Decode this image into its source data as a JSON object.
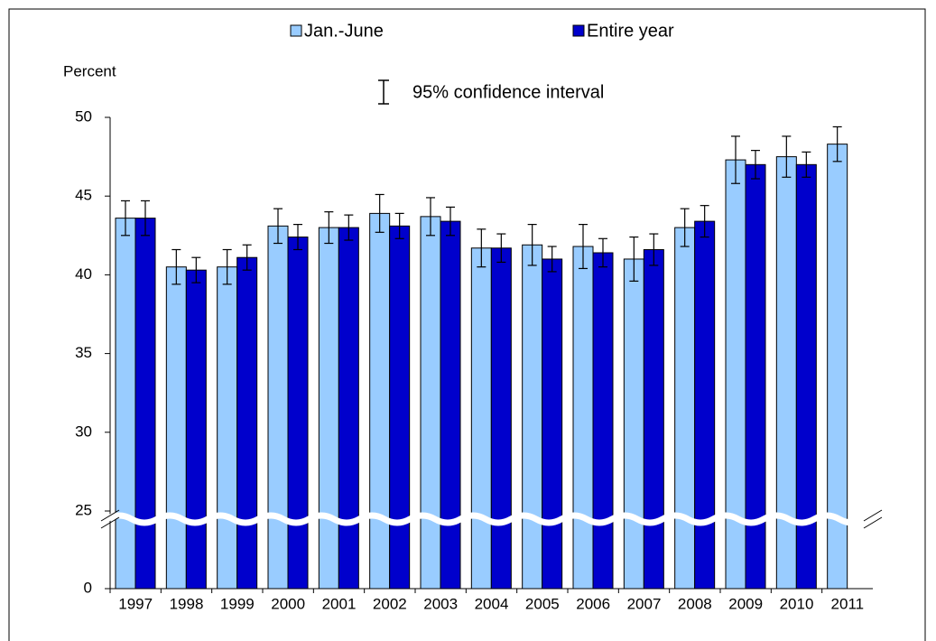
{
  "chart_data": {
    "type": "bar",
    "y_label": "Percent",
    "ci_legend": "95% confidence interval",
    "categories": [
      "1997",
      "1998",
      "1999",
      "2000",
      "2001",
      "2002",
      "2003",
      "2004",
      "2005",
      "2006",
      "2007",
      "2008",
      "2009",
      "2010",
      "2011"
    ],
    "series": [
      {
        "name": "Jan.-June",
        "color": "#99ccff",
        "values": [
          43.6,
          40.5,
          40.5,
          43.1,
          43.0,
          43.9,
          43.7,
          41.7,
          41.9,
          41.8,
          41.0,
          43.0,
          47.3,
          47.5,
          48.3
        ],
        "errors": [
          1.1,
          1.1,
          1.1,
          1.1,
          1.0,
          1.2,
          1.2,
          1.2,
          1.3,
          1.4,
          1.4,
          1.2,
          1.5,
          1.3,
          1.1
        ]
      },
      {
        "name": "Entire year",
        "color": "#0000cc",
        "values": [
          43.6,
          40.3,
          41.1,
          42.4,
          43.0,
          43.1,
          43.4,
          41.7,
          41.0,
          41.4,
          41.6,
          43.4,
          47.0,
          47.0,
          null
        ],
        "errors": [
          1.1,
          0.8,
          0.8,
          0.8,
          0.8,
          0.8,
          0.9,
          0.9,
          0.8,
          0.9,
          1.0,
          1.0,
          0.9,
          0.8,
          null
        ]
      }
    ],
    "ylim": [
      0,
      50
    ],
    "yticks": [
      0,
      25,
      30,
      35,
      40,
      45,
      50
    ],
    "y_break": true,
    "legend": "top"
  }
}
